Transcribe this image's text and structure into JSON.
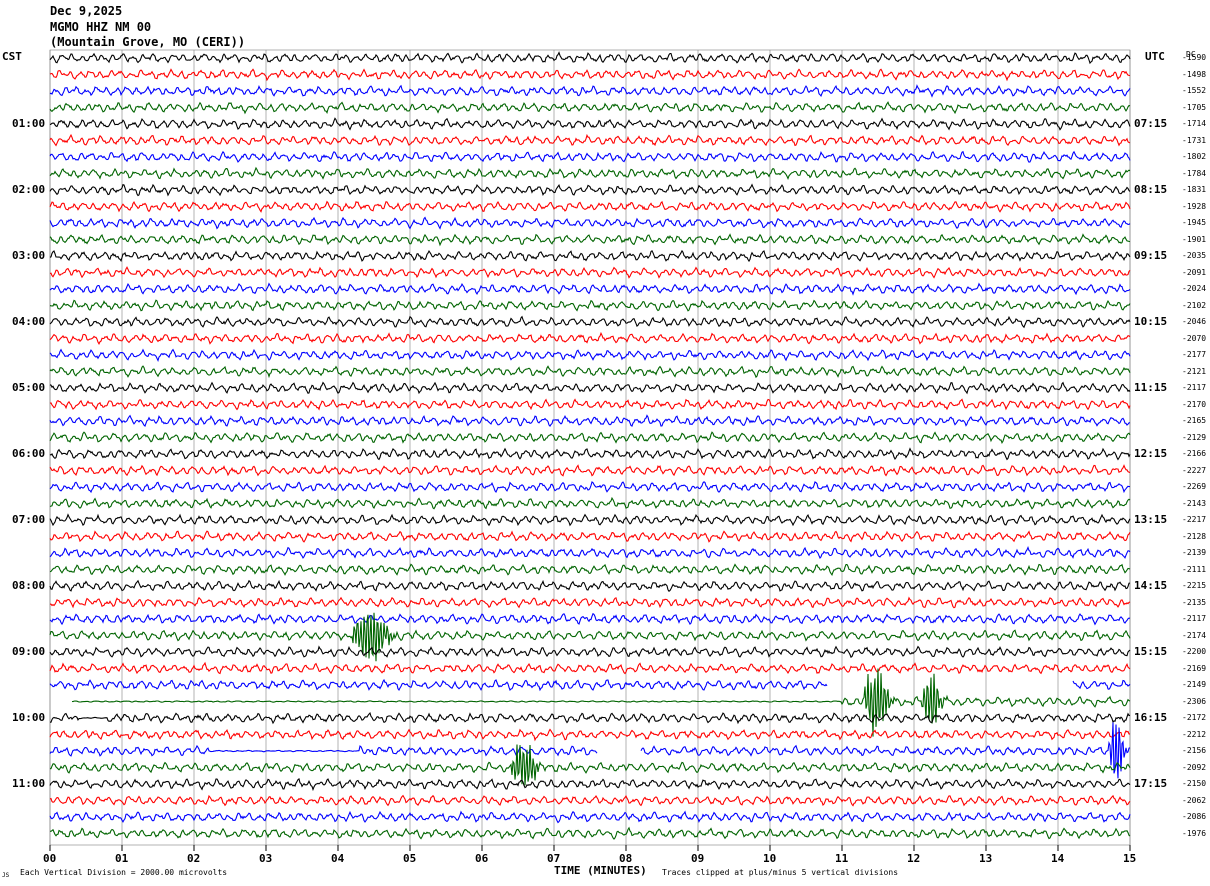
{
  "header": {
    "date": "Dec 9,2025",
    "station": "MGMO HHZ NM 00",
    "location": "(Mountain Grove, MO (CERI))"
  },
  "labels": {
    "left_tz": "CST",
    "right_tz": "UTC",
    "dc_header": "DC",
    "xlabel": "TIME (MINUTES)",
    "footer_left": "Each Vertical Division = 2000.00 microvolts",
    "footer_right": "Traces clipped at plus/minus 5 vertical divisions",
    "corner_mark": "JS"
  },
  "colors": {
    "trace_cycle": [
      "#000000",
      "#ff0000",
      "#0000ff",
      "#006400"
    ],
    "grid": "#808080"
  },
  "chart_data": {
    "type": "line",
    "title": "",
    "xlabel": "TIME (MINUTES)",
    "xlim": [
      0,
      15
    ],
    "x_ticks": [
      "00",
      "01",
      "02",
      "03",
      "04",
      "05",
      "06",
      "07",
      "08",
      "09",
      "10",
      "11",
      "12",
      "13",
      "14",
      "15"
    ],
    "trace_count": 48,
    "minutes_per_trace": 15,
    "left_hour_labels": [
      "01:00",
      "02:00",
      "03:00",
      "04:00",
      "05:00",
      "06:00",
      "07:00",
      "08:00",
      "09:00",
      "10:00",
      "11:00"
    ],
    "right_hour_labels": [
      "07:15",
      "08:15",
      "09:15",
      "10:15",
      "11:15",
      "12:15",
      "13:15",
      "14:15",
      "15:15",
      "16:15",
      "17:15"
    ],
    "hour_label_first_trace": 4,
    "dc_offsets": [
      "-1590",
      "-1498",
      "-1552",
      "-1705",
      "-1714",
      "-1731",
      "-1802",
      "-1784",
      "-1831",
      "-1928",
      "-1945",
      "-1901",
      "-2035",
      "-2091",
      "-2024",
      "-2102",
      "-2046",
      "-2070",
      "-2177",
      "-2121",
      "-2117",
      "-2170",
      "-2165",
      "-2129",
      "-2166",
      "-2227",
      "-2269",
      "-2143",
      "-2217",
      "-2128",
      "-2139",
      "-2111",
      "-2215",
      "-2135",
      "-2117",
      "-2174",
      "-2200",
      "-2169",
      "-2149",
      "-2306",
      "-2172",
      "-2212",
      "-2156",
      "-2092",
      "-2150",
      "-2062",
      "-2086",
      "-1976"
    ],
    "events": [
      {
        "trace": 35,
        "start_min": 4.2,
        "end_min": 4.9,
        "amplitude": 3.5
      },
      {
        "trace": 39,
        "start_min": 11.3,
        "end_min": 11.8,
        "amplitude": 4.0
      },
      {
        "trace": 39,
        "start_min": 12.1,
        "end_min": 12.5,
        "amplitude": 3.0
      },
      {
        "trace": 42,
        "start_min": 14.7,
        "end_min": 15.0,
        "amplitude": 4.0
      },
      {
        "trace": 43,
        "start_min": 6.4,
        "end_min": 6.9,
        "amplitude": 3.0
      }
    ],
    "gaps": [
      {
        "trace": 38,
        "start_min": 10.8,
        "end_min": 14.2
      },
      {
        "trace": 39,
        "start_min": 0.0,
        "end_min": 0.3
      },
      {
        "trace": 42,
        "start_min": 7.6,
        "end_min": 8.2
      }
    ],
    "quiet_segments": [
      {
        "trace": 39,
        "start_min": 0.3,
        "end_min": 11.0
      },
      {
        "trace": 40,
        "start_min": 0.4,
        "end_min": 0.8
      },
      {
        "trace": 42,
        "start_min": 2.2,
        "end_min": 4.3
      }
    ]
  }
}
